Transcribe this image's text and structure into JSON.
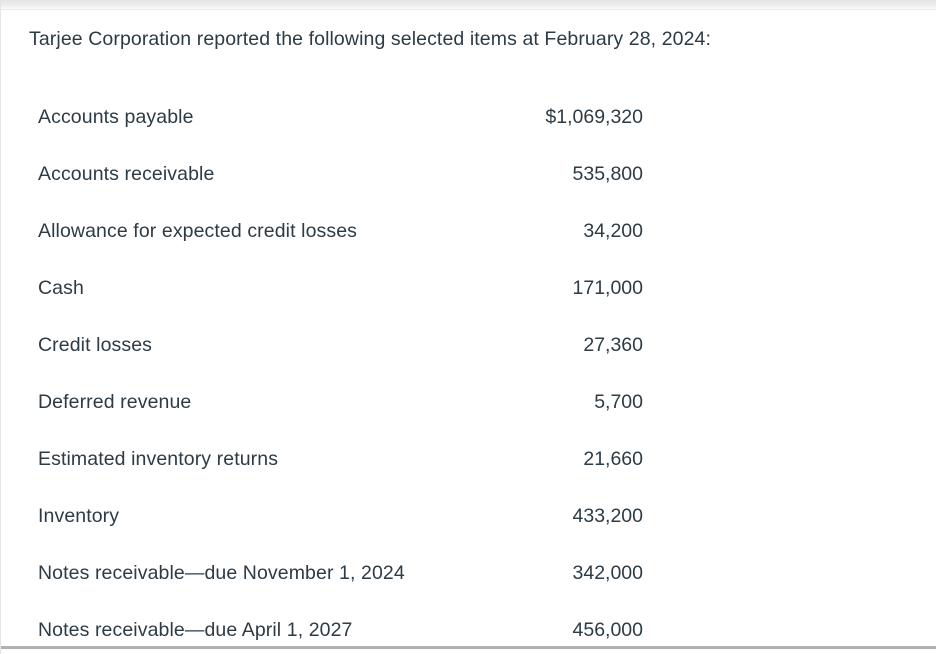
{
  "document": {
    "title": "Tarjee Corporation reported the following selected items at February 28, 2024:",
    "items": [
      {
        "label": "Accounts payable",
        "value": "$1,069,320"
      },
      {
        "label": "Accounts receivable",
        "value": "535,800"
      },
      {
        "label": "Allowance for expected credit losses",
        "value": "34,200"
      },
      {
        "label": "Cash",
        "value": "171,000"
      },
      {
        "label": "Credit losses",
        "value": "27,360"
      },
      {
        "label": "Deferred revenue",
        "value": "5,700"
      },
      {
        "label": "Estimated inventory returns",
        "value": "21,660"
      },
      {
        "label": "Inventory",
        "value": "433,200"
      },
      {
        "label": "Notes receivable—due November 1, 2024",
        "value": "342,000"
      },
      {
        "label": "Notes receivable—due April 1, 2027",
        "value": "456,000"
      }
    ],
    "colors": {
      "text": "#2d3b45",
      "background": "#ffffff",
      "top_shadow": "#e3e3e3",
      "bottom_divider": "#b1b1b1"
    }
  }
}
